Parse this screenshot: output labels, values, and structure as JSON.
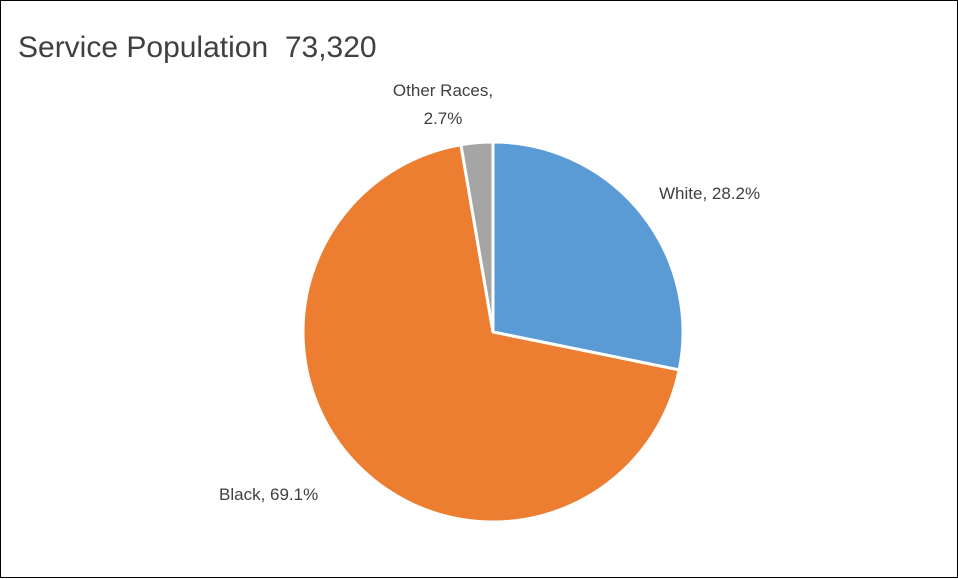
{
  "chart_data": {
    "type": "pie",
    "title": "Service Population  73,320",
    "slices": [
      {
        "label": "White",
        "value": 28.2,
        "display": "White, 28.2%",
        "color": "#5B9BD5"
      },
      {
        "label": "Black",
        "value": 69.1,
        "display": "Black, 69.1%",
        "color": "#ED7D31"
      },
      {
        "label": "Other Races",
        "value": 2.7,
        "display_lines": [
          "Other Races,",
          "2.7%"
        ],
        "color": "#A5A5A5"
      }
    ],
    "unit": "%",
    "legend": "none",
    "start_angle": "12 o'clock, clockwise"
  }
}
